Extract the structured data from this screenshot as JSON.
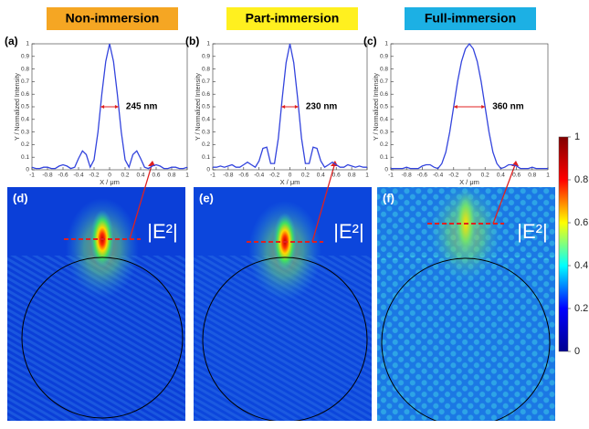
{
  "headers": [
    {
      "text": "Non-immersion",
      "color": "#f5a623"
    },
    {
      "text": "Part-immersion",
      "color": "#fff01f"
    },
    {
      "text": "Full-immersion",
      "color": "#1cb0e4"
    }
  ],
  "field_panels": [
    {
      "label": "(d)",
      "annotation": "|E²|"
    },
    {
      "label": "(e)",
      "annotation": "|E²|"
    },
    {
      "label": "(f)",
      "annotation": "|E²|"
    }
  ],
  "chart_data": [
    {
      "type": "line",
      "label": "(a)",
      "annotation": "245 nm",
      "color": "#3344dd",
      "xlabel": "X / μm",
      "ylabel": "Y / Normalized Intensity",
      "x": [
        -1,
        -0.95,
        -0.9,
        -0.85,
        -0.8,
        -0.75,
        -0.7,
        -0.65,
        -0.6,
        -0.55,
        -0.5,
        -0.45,
        -0.4,
        -0.35,
        -0.3,
        -0.25,
        -0.2,
        -0.15,
        -0.1,
        -0.05,
        0,
        0.05,
        0.1,
        0.15,
        0.2,
        0.25,
        0.3,
        0.35,
        0.4,
        0.45,
        0.5,
        0.55,
        0.6,
        0.65,
        0.7,
        0.75,
        0.8,
        0.85,
        0.9,
        0.95,
        1
      ],
      "values": [
        0.02,
        0.01,
        0.01,
        0.02,
        0.02,
        0.01,
        0.01,
        0.03,
        0.04,
        0.03,
        0.01,
        0.02,
        0.09,
        0.15,
        0.12,
        0.02,
        0.08,
        0.3,
        0.6,
        0.86,
        1,
        0.86,
        0.6,
        0.3,
        0.08,
        0.02,
        0.12,
        0.15,
        0.09,
        0.02,
        0.01,
        0.03,
        0.04,
        0.03,
        0.01,
        0.01,
        0.02,
        0.02,
        0.01,
        0.01,
        0.02
      ],
      "xlim": [
        -1,
        1
      ],
      "xticks": [
        -1,
        -0.8,
        -0.6,
        -0.4,
        -0.2,
        0,
        0.2,
        0.4,
        0.6,
        0.8,
        1
      ],
      "ylim": [
        0,
        1
      ],
      "yticks": [
        0,
        0.1,
        0.2,
        0.3,
        0.4,
        0.5,
        0.6,
        0.7,
        0.8,
        0.9,
        1
      ]
    },
    {
      "type": "line",
      "label": "(b)",
      "annotation": "230 nm",
      "color": "#3344dd",
      "xlabel": "X / μm",
      "ylabel": "Y / Normalized Intensity",
      "x": [
        -1,
        -0.95,
        -0.9,
        -0.85,
        -0.8,
        -0.75,
        -0.7,
        -0.65,
        -0.6,
        -0.55,
        -0.5,
        -0.45,
        -0.4,
        -0.35,
        -0.3,
        -0.25,
        -0.2,
        -0.15,
        -0.1,
        -0.05,
        0,
        0.05,
        0.1,
        0.15,
        0.2,
        0.25,
        0.3,
        0.35,
        0.4,
        0.45,
        0.5,
        0.55,
        0.6,
        0.65,
        0.7,
        0.75,
        0.8,
        0.85,
        0.9,
        0.95,
        1
      ],
      "values": [
        0.02,
        0.02,
        0.03,
        0.02,
        0.03,
        0.04,
        0.02,
        0.02,
        0.04,
        0.06,
        0.04,
        0.02,
        0.07,
        0.17,
        0.18,
        0.05,
        0.05,
        0.25,
        0.57,
        0.85,
        1,
        0.85,
        0.57,
        0.25,
        0.05,
        0.05,
        0.18,
        0.17,
        0.07,
        0.02,
        0.04,
        0.06,
        0.04,
        0.02,
        0.02,
        0.04,
        0.03,
        0.02,
        0.03,
        0.02,
        0.02
      ],
      "xlim": [
        -1,
        1
      ],
      "xticks": [
        -1,
        -0.8,
        -0.6,
        -0.4,
        -0.2,
        0,
        0.2,
        0.4,
        0.6,
        0.8,
        1
      ],
      "ylim": [
        0,
        1
      ],
      "yticks": [
        0,
        0.1,
        0.2,
        0.3,
        0.4,
        0.5,
        0.6,
        0.7,
        0.8,
        0.9,
        1
      ]
    },
    {
      "type": "line",
      "label": "(c)",
      "annotation": "360 nm",
      "color": "#3344dd",
      "xlabel": "X / μm",
      "ylabel": "Y / Normalized Intensity",
      "x": [
        -1,
        -0.95,
        -0.9,
        -0.85,
        -0.8,
        -0.75,
        -0.7,
        -0.65,
        -0.6,
        -0.55,
        -0.5,
        -0.45,
        -0.4,
        -0.35,
        -0.3,
        -0.25,
        -0.2,
        -0.15,
        -0.1,
        -0.05,
        0,
        0.05,
        0.1,
        0.15,
        0.2,
        0.25,
        0.3,
        0.35,
        0.4,
        0.45,
        0.5,
        0.55,
        0.6,
        0.65,
        0.7,
        0.75,
        0.8,
        0.85,
        0.9,
        0.95,
        1
      ],
      "values": [
        0.01,
        0.01,
        0.01,
        0.01,
        0.02,
        0.01,
        0.01,
        0.01,
        0.03,
        0.04,
        0.04,
        0.02,
        0.01,
        0.05,
        0.14,
        0.3,
        0.5,
        0.7,
        0.86,
        0.96,
        1,
        0.96,
        0.86,
        0.7,
        0.5,
        0.3,
        0.14,
        0.05,
        0.01,
        0.02,
        0.04,
        0.04,
        0.03,
        0.01,
        0.01,
        0.01,
        0.02,
        0.01,
        0.01,
        0.01,
        0.01
      ],
      "xlim": [
        -1,
        1
      ],
      "xticks": [
        -1,
        -0.8,
        -0.6,
        -0.4,
        -0.2,
        0,
        0.2,
        0.4,
        0.6,
        0.8,
        1
      ],
      "ylim": [
        0,
        1
      ],
      "yticks": [
        0,
        0.1,
        0.2,
        0.3,
        0.4,
        0.5,
        0.6,
        0.7,
        0.8,
        0.9,
        1
      ]
    },
    {
      "type": "colorbar",
      "colors": [
        "#00008f",
        "#0000ff",
        "#00ffff",
        "#ffff00",
        "#ff0000",
        "#800000"
      ],
      "ylim": [
        0,
        1
      ],
      "yticks": [
        0,
        0.2,
        0.4,
        0.6,
        0.8,
        1
      ]
    }
  ]
}
